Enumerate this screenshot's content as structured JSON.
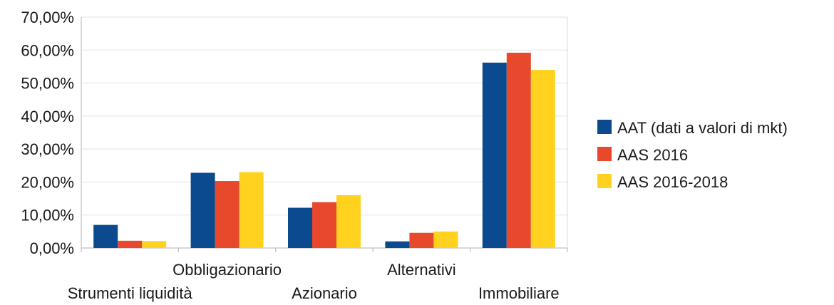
{
  "chart_data": {
    "type": "bar",
    "title": "",
    "xlabel": "",
    "ylabel": "",
    "categories": [
      "Strumenti liquidità",
      "Obbligazionario",
      "Azionario",
      "Alternativi",
      "Immobiliare"
    ],
    "series": [
      {
        "name": "AAT (dati a valori di mkt)",
        "color": "#0b4a8f",
        "values": [
          7.0,
          22.8,
          12.2,
          2.0,
          56.2
        ]
      },
      {
        "name": "AAS 2016",
        "color": "#e8482b",
        "values": [
          2.2,
          20.3,
          13.9,
          4.6,
          59.2
        ]
      },
      {
        "name": "AAS 2016-2018",
        "color": "#ffd21f",
        "values": [
          2.1,
          23.0,
          16.0,
          5.0,
          54.0
        ]
      }
    ],
    "ylim": [
      0,
      70
    ],
    "yticks": [
      "0,00%",
      "10,00%",
      "20,00%",
      "30,00%",
      "40,00%",
      "50,00%",
      "60,00%",
      "70,00%"
    ],
    "grid": true,
    "legend_position": "right"
  }
}
